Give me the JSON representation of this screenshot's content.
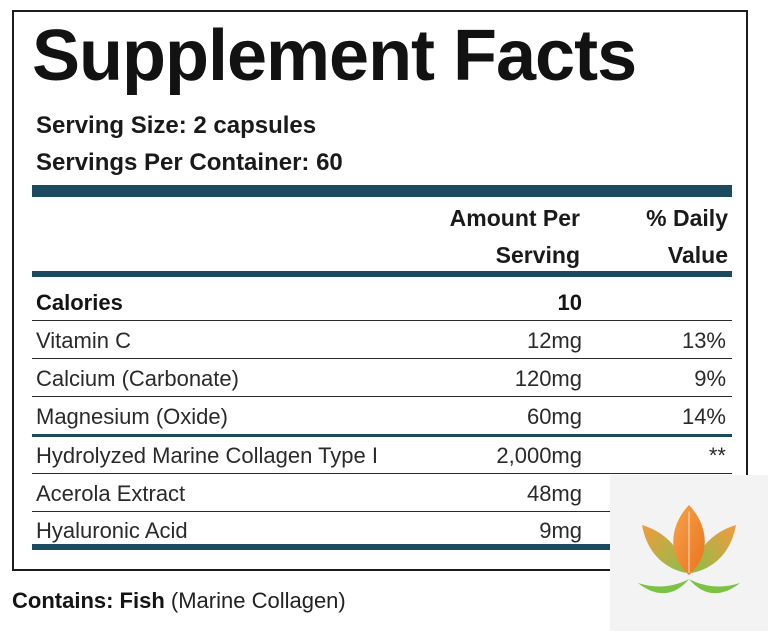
{
  "label": {
    "title": "Supplement Facts",
    "serving_size": "Serving Size: 2 capsules",
    "servings_per_container": "Servings Per Container: 60",
    "header": {
      "amount_line1": "Amount Per",
      "amount_line2": "Serving",
      "daily_line1": "% Daily",
      "daily_line2": "Value"
    },
    "rows": [
      {
        "name": "Calories",
        "amount": "10",
        "daily": ""
      },
      {
        "name": "Vitamin C",
        "amount": "12mg",
        "daily": "13%"
      },
      {
        "name": "Calcium (Carbonate)",
        "amount": "120mg",
        "daily": "9%"
      },
      {
        "name": "Magnesium (Oxide)",
        "amount": "60mg",
        "daily": "14%"
      },
      {
        "name": "Hydrolyzed Marine Collagen Type I",
        "amount": "2,000mg",
        "daily": "**"
      },
      {
        "name": "Acerola Extract",
        "amount": "48mg",
        "daily": ""
      },
      {
        "name": "Hyaluronic Acid",
        "amount": "9mg",
        "daily": ""
      }
    ]
  },
  "contains": {
    "prefix": "Contains: Fish",
    "detail": " (Marine Collagen)"
  },
  "colors": {
    "rule": "#1c4a5e",
    "logo_orange": "#f08a2c",
    "logo_green": "#7cc243"
  },
  "logo": {
    "icon": "lotus-leaf-logo"
  }
}
